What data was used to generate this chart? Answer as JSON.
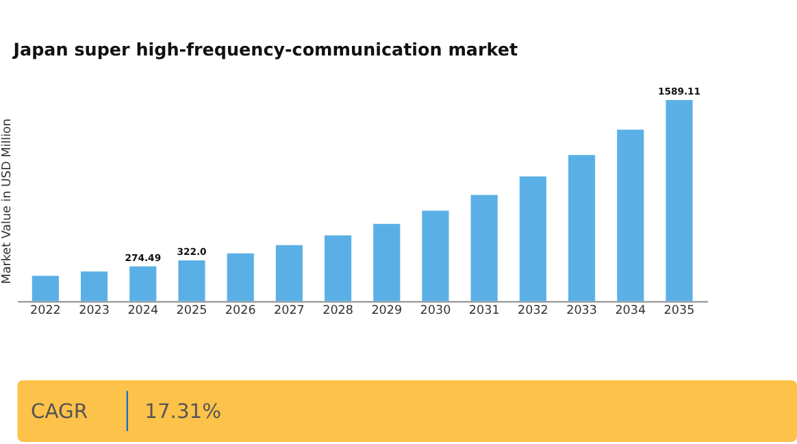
{
  "chart_data": [
    {
      "type": "bar",
      "title": "Japan super high-frequency-communication market",
      "ylabel": "Market Value in USD Million",
      "categories": [
        "2022",
        "2023",
        "2024",
        "2025",
        "2026",
        "2027",
        "2028",
        "2029",
        "2030",
        "2031",
        "2032",
        "2033",
        "2034",
        "2035"
      ],
      "values": [
        200,
        234,
        274.49,
        322.0,
        378,
        443,
        520,
        610,
        715,
        839,
        985,
        1155,
        1355,
        1589.11
      ],
      "value_labels": [
        null,
        null,
        "274.49",
        "322.0",
        null,
        null,
        null,
        null,
        null,
        null,
        null,
        null,
        null,
        "1589.11"
      ],
      "color": "#5ab0e6",
      "tick_labels": "x",
      "grid": false
    },
    {
      "type": "other",
      "annotations": [
        "CAGR",
        "17.31%"
      ]
    }
  ]
}
